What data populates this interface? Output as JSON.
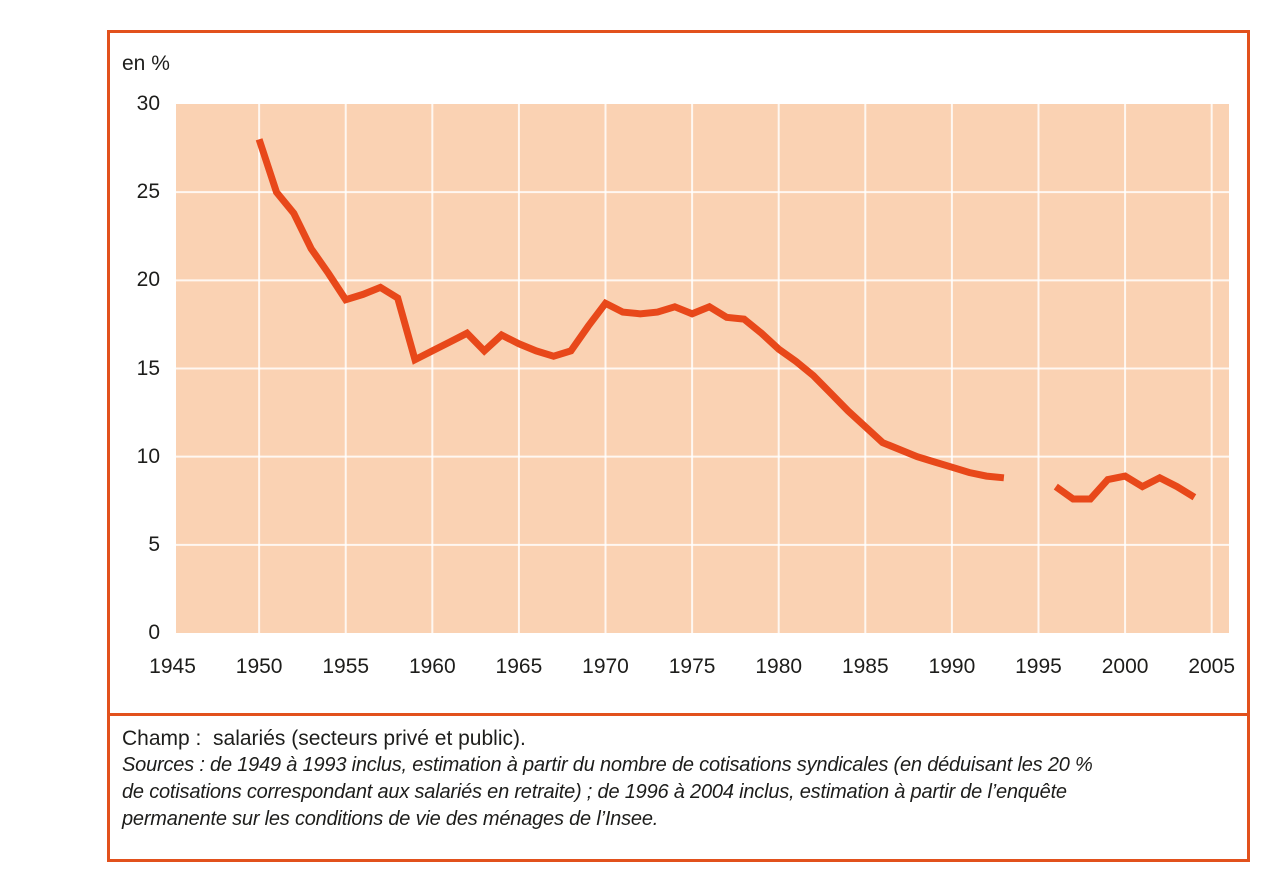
{
  "colors": {
    "figure_border": "#e2511c",
    "line": "#e8481a",
    "plot_background": "#fad2b3",
    "gridline": "rgba(255,255,255,0.82)",
    "text": "#1d1d1b"
  },
  "chart_data": {
    "type": "line",
    "title": "",
    "ylabel": "en %",
    "xlabel": "",
    "grid": true,
    "legend": "none",
    "xlim": [
      1945.2,
      2006
    ],
    "ylim": [
      0,
      30
    ],
    "x_ticks": [
      1945,
      1950,
      1955,
      1960,
      1965,
      1970,
      1975,
      1980,
      1985,
      1990,
      1995,
      2000,
      2005
    ],
    "y_ticks": [
      0,
      5,
      10,
      15,
      20,
      25,
      30
    ],
    "series": [
      {
        "name": "de 1949 à 1993 (cotisations syndicales)",
        "x": [
          1950,
          1951,
          1952,
          1953,
          1954,
          1955,
          1956,
          1957,
          1958,
          1959,
          1960,
          1961,
          1962,
          1963,
          1964,
          1965,
          1966,
          1967,
          1968,
          1969,
          1970,
          1971,
          1972,
          1973,
          1974,
          1975,
          1976,
          1977,
          1978,
          1979,
          1980,
          1981,
          1982,
          1983,
          1984,
          1985,
          1986,
          1987,
          1988,
          1989,
          1990,
          1991,
          1992,
          1993
        ],
        "values": [
          28.0,
          25.0,
          23.8,
          21.8,
          20.4,
          18.9,
          19.2,
          19.6,
          19.0,
          15.5,
          16.0,
          16.5,
          17.0,
          16.0,
          16.9,
          16.4,
          16.0,
          15.7,
          16.0,
          17.4,
          18.7,
          18.2,
          18.1,
          18.2,
          18.5,
          18.1,
          18.5,
          17.9,
          17.8,
          17.0,
          16.1,
          15.4,
          14.6,
          13.6,
          12.6,
          11.7,
          10.8,
          10.4,
          10.0,
          9.7,
          9.4,
          9.1,
          8.9,
          8.8
        ]
      },
      {
        "name": "de 1996 à 2004 (enquête Insee)",
        "x": [
          1996,
          1997,
          1998,
          1999,
          2000,
          2001,
          2002,
          2003,
          2004
        ],
        "values": [
          8.3,
          7.6,
          7.6,
          8.7,
          8.9,
          8.3,
          8.8,
          8.3,
          7.7
        ]
      }
    ]
  },
  "footer": {
    "champ": "Champ :  salariés (secteurs privé et public).",
    "sources_lines": [
      "Sources : de 1949 à 1993 inclus, estimation à partir du nombre de cotisations syndicales (en déduisant les 20 %",
      "de cotisations correspondant aux salariés en retraite) ; de 1996 à 2004 inclus, estimation à partir de l’enquête",
      "permanente sur les conditions de vie des ménages de l’Insee."
    ]
  }
}
